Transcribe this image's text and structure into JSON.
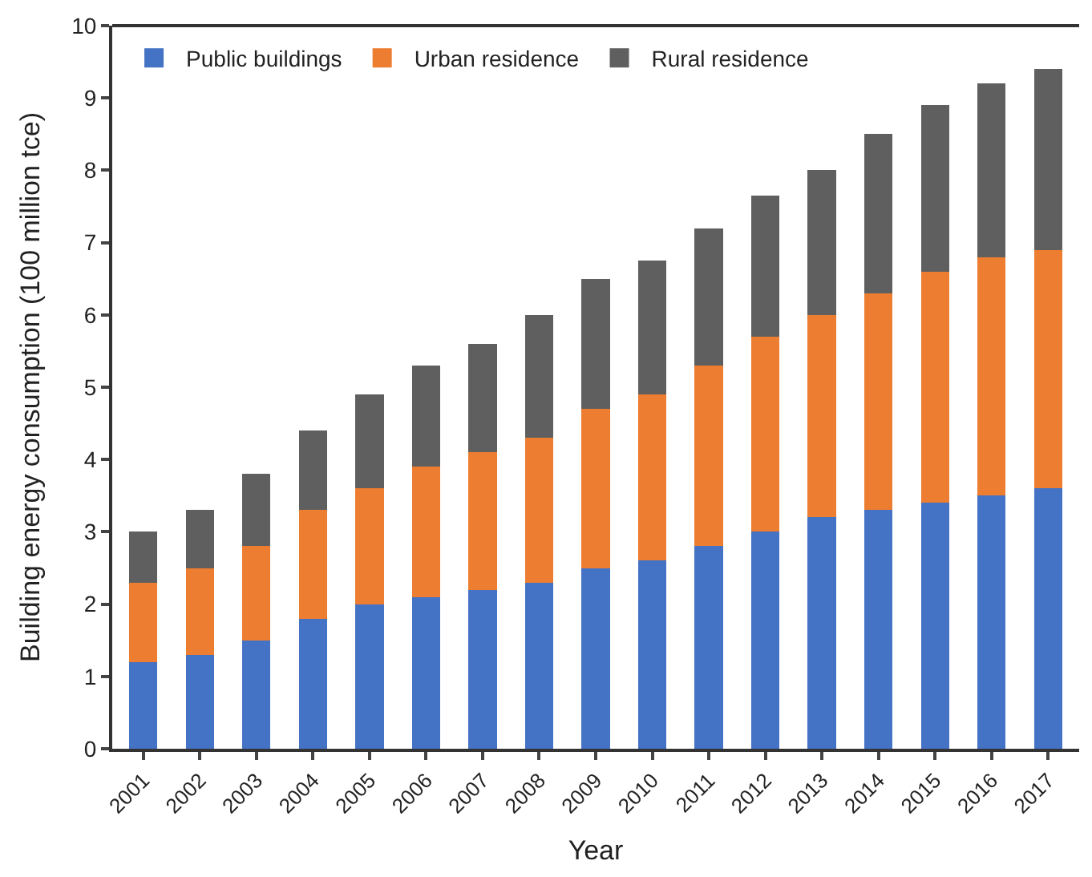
{
  "chart_data": {
    "type": "bar",
    "stacked": true,
    "xlabel": "Year",
    "ylabel": "Building energy consumption (100 million tce)",
    "categories": [
      "2001",
      "2002",
      "2003",
      "2004",
      "2005",
      "2006",
      "2007",
      "2008",
      "2009",
      "2010",
      "2011",
      "2012",
      "2013",
      "2014",
      "2015",
      "2016",
      "2017"
    ],
    "series": [
      {
        "name": "Public buildings",
        "color": "#4472c4",
        "values": [
          1.2,
          1.3,
          1.5,
          1.8,
          2.0,
          2.1,
          2.2,
          2.3,
          2.5,
          2.6,
          2.8,
          3.0,
          3.2,
          3.3,
          3.4,
          3.5,
          3.6
        ]
      },
      {
        "name": "Urban residence",
        "color": "#ed7d31",
        "values": [
          1.1,
          1.2,
          1.3,
          1.5,
          1.6,
          1.8,
          1.9,
          2.0,
          2.2,
          2.3,
          2.5,
          2.7,
          2.8,
          3.0,
          3.2,
          3.3,
          3.3
        ]
      },
      {
        "name": "Rural residence",
        "color": "#5f5f5f",
        "values": [
          0.7,
          0.8,
          1.0,
          1.1,
          1.3,
          1.4,
          1.5,
          1.7,
          1.8,
          1.85,
          1.9,
          1.95,
          2.0,
          2.2,
          2.3,
          2.4,
          2.5
        ]
      }
    ],
    "ylim": [
      0,
      10
    ],
    "yticks": [
      0,
      1,
      2,
      3,
      4,
      5,
      6,
      7,
      8,
      9,
      10
    ],
    "legend": "top left"
  }
}
